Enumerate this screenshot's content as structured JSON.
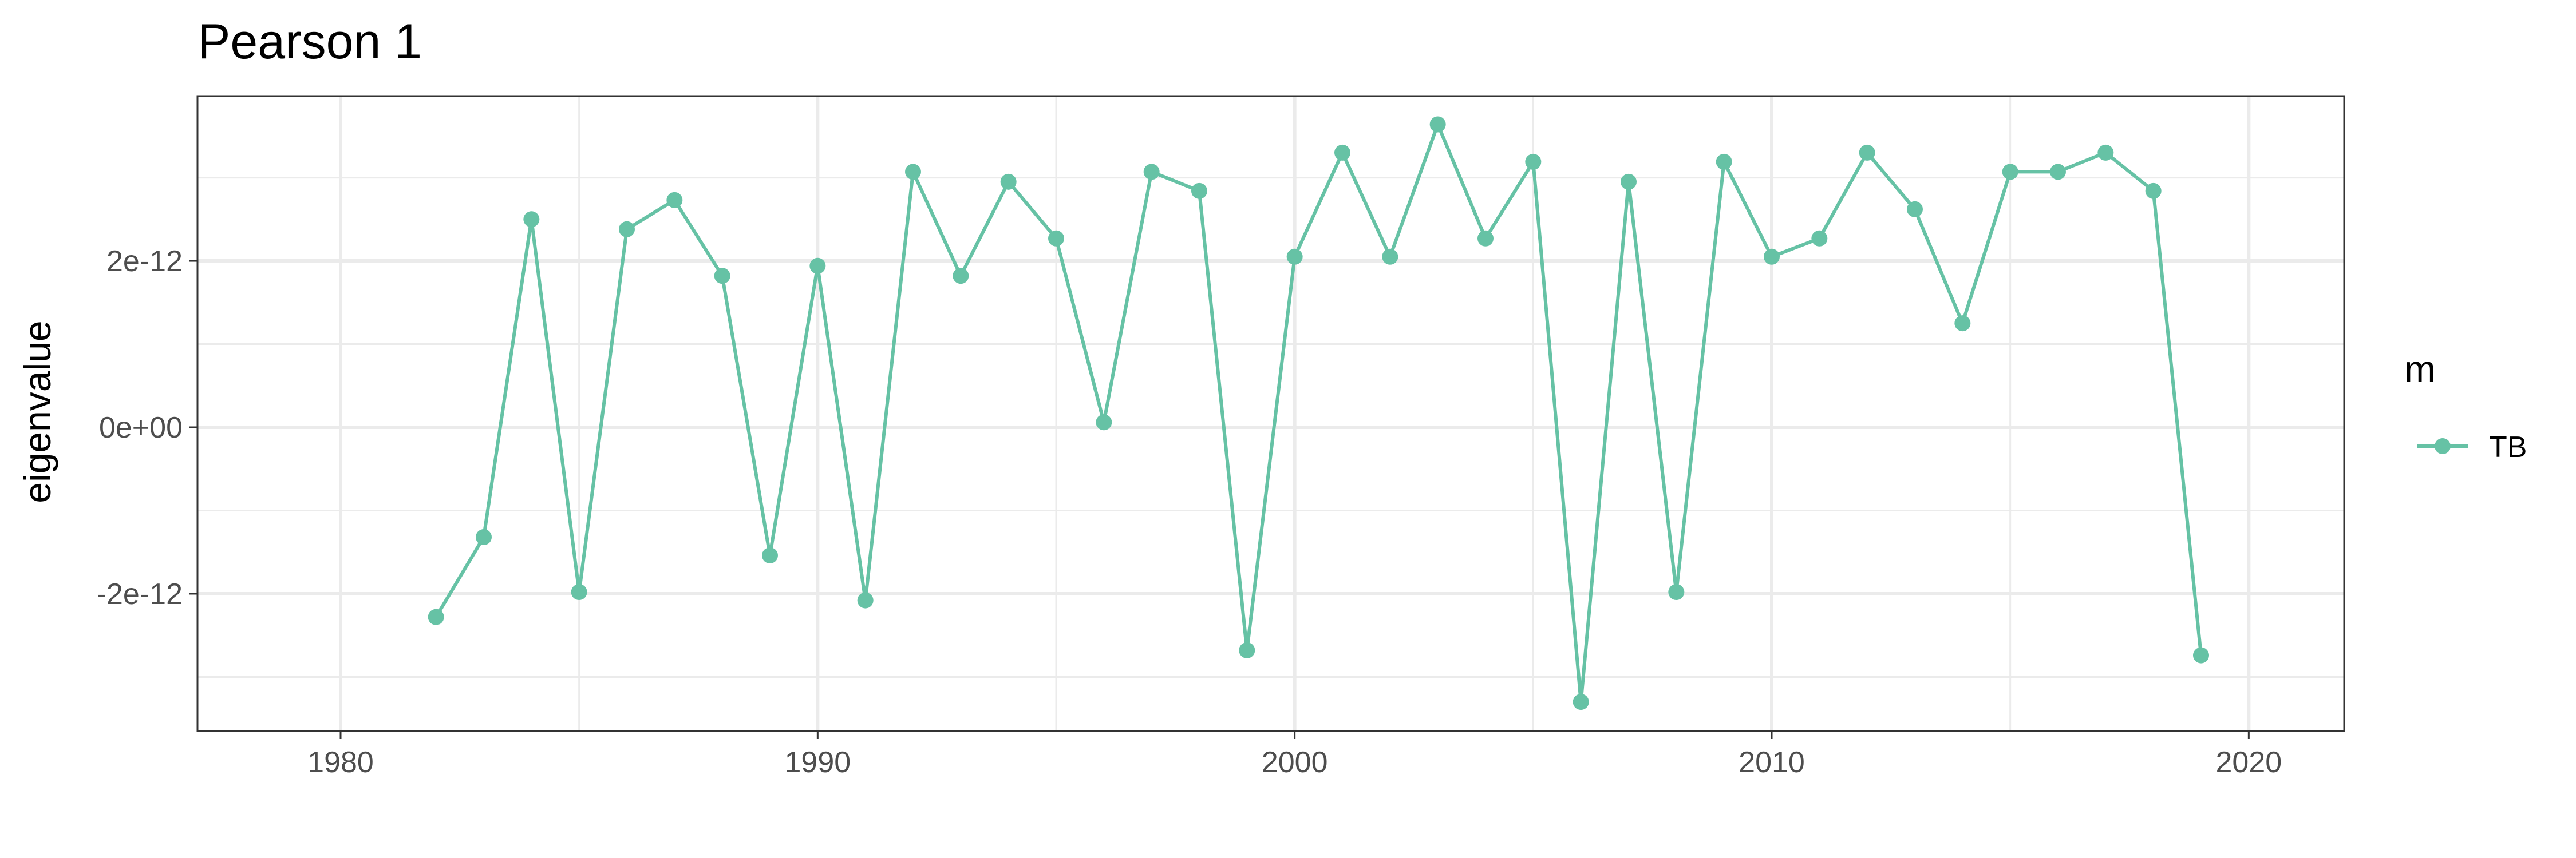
{
  "chart_data": {
    "type": "line",
    "title": "Pearson 1",
    "xlabel": "",
    "ylabel": "eigenvalue",
    "xlim": [
      1977,
      2022
    ],
    "ylim": [
      -3.65e-12,
      3.98e-12
    ],
    "x_major_ticks": [
      1980,
      1990,
      2000,
      2010,
      2020
    ],
    "x_tick_labels": [
      "1980",
      "1990",
      "2000",
      "2010",
      "2020"
    ],
    "x_minor_ticks": [
      1985,
      1995,
      2005,
      2015
    ],
    "y_major_ticks": [
      -2e-12,
      0,
      2e-12
    ],
    "y_tick_labels": [
      "-2e-12",
      "0e+00",
      "2e-12"
    ],
    "y_minor_ticks": [
      -3e-12,
      -1e-12,
      1e-12,
      3e-12
    ],
    "grid": true,
    "legend": {
      "title": "m",
      "position": "right"
    },
    "series": [
      {
        "name": "TB",
        "color": "#66c2a5",
        "x": [
          1982,
          1983,
          1984,
          1985,
          1986,
          1987,
          1988,
          1989,
          1990,
          1991,
          1992,
          1993,
          1994,
          1995,
          1996,
          1997,
          1998,
          1999,
          2000,
          2001,
          2002,
          2003,
          2004,
          2005,
          2006,
          2007,
          2008,
          2009,
          2010,
          2011,
          2012,
          2013,
          2014,
          2015,
          2016,
          2017,
          2018,
          2019
        ],
        "values": [
          -2.28e-12,
          -1.32e-12,
          2.5e-12,
          -1.98e-12,
          2.38e-12,
          2.73e-12,
          1.82e-12,
          -1.54e-12,
          1.94e-12,
          -2.08e-12,
          3.07e-12,
          1.82e-12,
          2.95e-12,
          2.27e-12,
          6e-14,
          3.07e-12,
          2.84e-12,
          -2.68e-12,
          2.05e-12,
          3.3e-12,
          2.05e-12,
          3.64e-12,
          2.27e-12,
          3.19e-12,
          -3.3e-12,
          2.95e-12,
          -1.98e-12,
          3.19e-12,
          2.05e-12,
          2.27e-12,
          3.3e-12,
          2.62e-12,
          1.25e-12,
          3.07e-12,
          3.07e-12,
          3.3e-12,
          2.84e-12,
          -2.74e-12
        ]
      }
    ]
  }
}
